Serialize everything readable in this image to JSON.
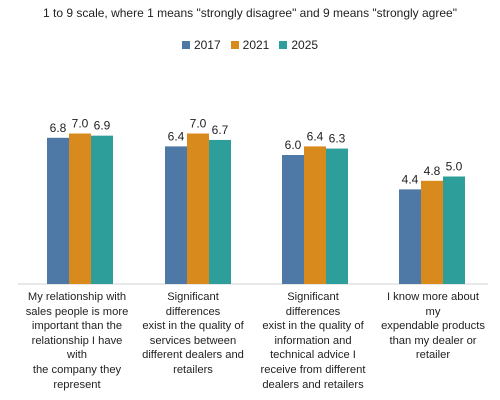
{
  "chart_data": {
    "type": "bar",
    "title": "",
    "subtitle": "1 to 9 scale, where 1 means \"strongly disagree\" and 9 means \"strongly agree\"",
    "xlabel": "",
    "ylabel": "",
    "ylim": [
      0,
      9
    ],
    "grid": false,
    "legend_position": "top-center",
    "categories": [
      "My relationship with sales people is more important than the relationship I have with the company they represent",
      "Significant differences exist in the quality of services between different dealers and retailers",
      "Significant differences exist in the quality of information and technical advice I receive from different dealers and retailers",
      "I know more about my expendable products than my dealer or retailer"
    ],
    "category_display": [
      "My relationship with\nsales people is more\nimportant than the\nrelationship I have with\nthe company they\nrepresent",
      "Significant differences\nexist in the quality of\nservices between\ndifferent dealers and\nretailers",
      "Significant differences\nexist in the quality of\ninformation and\ntechnical advice I\nreceive from different\ndealers and retailers",
      "I know more about my\nexpendable products\nthan my dealer or\nretailer"
    ],
    "series": [
      {
        "name": "2017",
        "color": "#4e79a7",
        "values": [
          6.8,
          6.4,
          6.0,
          4.4
        ]
      },
      {
        "name": "2021",
        "color": "#d98a1c",
        "values": [
          7.0,
          7.0,
          6.4,
          4.8
        ]
      },
      {
        "name": "2025",
        "color": "#2e9e9a",
        "values": [
          6.9,
          6.7,
          6.3,
          5.0
        ]
      }
    ]
  }
}
